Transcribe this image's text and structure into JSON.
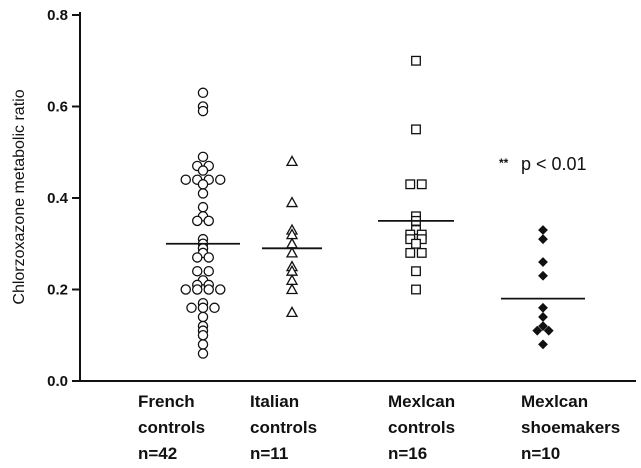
{
  "chart_data": {
    "type": "scatter",
    "title": "",
    "xlabel": "",
    "ylabel": "Chlorzoxazone metabolic ratio",
    "ylim": [
      0,
      0.8
    ],
    "yticks": [
      "0.0",
      "0.2",
      "0.4",
      "0.6",
      "0.8"
    ],
    "grid": false,
    "groups": [
      {
        "label_lines": [
          "French",
          "controls",
          "n=42"
        ],
        "marker": "circle-open",
        "median": 0.3,
        "values": [
          0.63,
          0.6,
          0.59,
          0.49,
          0.47,
          0.47,
          0.46,
          0.44,
          0.44,
          0.44,
          0.44,
          0.43,
          0.41,
          0.38,
          0.36,
          0.35,
          0.35,
          0.31,
          0.3,
          0.29,
          0.28,
          0.27,
          0.27,
          0.24,
          0.24,
          0.22,
          0.21,
          0.21,
          0.2,
          0.2,
          0.2,
          0.2,
          0.17,
          0.16,
          0.16,
          0.16,
          0.14,
          0.12,
          0.11,
          0.1,
          0.08,
          0.06
        ]
      },
      {
        "label_lines": [
          "Italian",
          "controls",
          "n=11"
        ],
        "marker": "triangle-open",
        "median": 0.29,
        "values": [
          0.48,
          0.39,
          0.33,
          0.32,
          0.3,
          0.28,
          0.25,
          0.24,
          0.22,
          0.2,
          0.15
        ]
      },
      {
        "label_lines": [
          "Mexlcan",
          "controls",
          "n=16"
        ],
        "marker": "square-open",
        "median": 0.35,
        "values": [
          0.7,
          0.55,
          0.43,
          0.43,
          0.36,
          0.35,
          0.33,
          0.32,
          0.32,
          0.31,
          0.31,
          0.3,
          0.28,
          0.28,
          0.24,
          0.2
        ]
      },
      {
        "label_lines": [
          "Mexlcan",
          "shoemakers",
          "n=10"
        ],
        "marker": "diamond-filled",
        "median": 0.18,
        "values": [
          0.33,
          0.31,
          0.26,
          0.23,
          0.16,
          0.14,
          0.12,
          0.11,
          0.11,
          0.08
        ]
      }
    ],
    "annotations": [
      {
        "stars": "**",
        "text": "p < 0.01"
      }
    ]
  }
}
